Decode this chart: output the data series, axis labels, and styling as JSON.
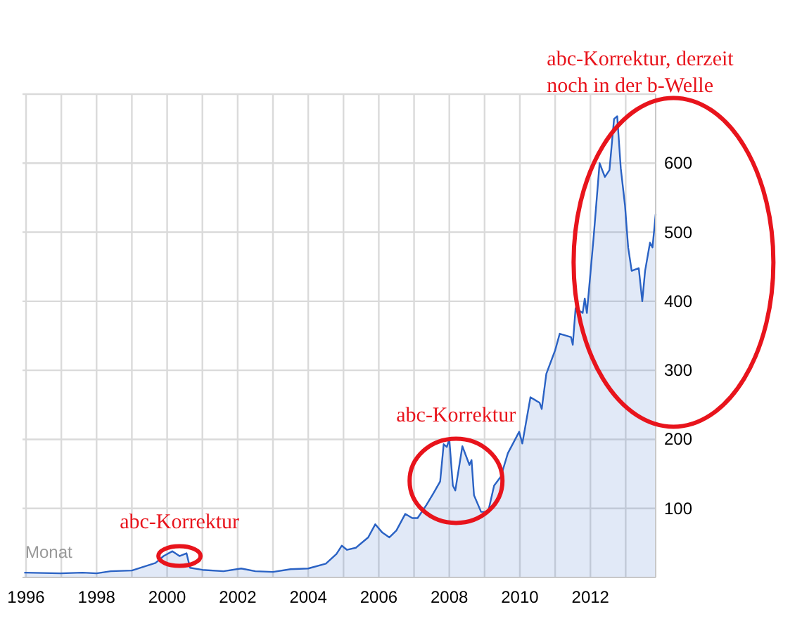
{
  "chart_data": {
    "type": "area",
    "color": "#2a62c4",
    "grid": true,
    "x": [
      1995.95,
      1996.98,
      1997.6,
      1998.0,
      1998.4,
      1999.0,
      1999.67,
      1999.9,
      2000.15,
      2000.35,
      2000.55,
      2000.65,
      2001.0,
      2001.6,
      2002.1,
      2002.5,
      2003.0,
      2003.5,
      2004.0,
      2004.5,
      2004.8,
      2004.95,
      2005.1,
      2005.35,
      2005.7,
      2005.9,
      2006.1,
      2006.3,
      2006.5,
      2006.75,
      2006.95,
      2007.1,
      2007.35,
      2007.55,
      2007.74,
      2007.84,
      2007.93,
      2008.0,
      2008.1,
      2008.17,
      2008.37,
      2008.57,
      2008.63,
      2008.7,
      2008.9,
      2009.1,
      2009.27,
      2009.46,
      2009.66,
      2009.98,
      2010.07,
      2010.3,
      2010.56,
      2010.62,
      2010.75,
      2011.0,
      2011.13,
      2011.45,
      2011.5,
      2011.58,
      2011.78,
      2011.84,
      2011.9,
      2012.09,
      2012.26,
      2012.41,
      2012.54,
      2012.67,
      2012.76,
      2012.86,
      2012.98,
      2013.07,
      2013.17,
      2013.37,
      2013.47,
      2013.55,
      2013.69,
      2013.76,
      2013.85
    ],
    "values": [
      7,
      6,
      7,
      6,
      9,
      10,
      21,
      31,
      38,
      31,
      35,
      14,
      11,
      9,
      13,
      9,
      8,
      12,
      13,
      20,
      34,
      46,
      40,
      43,
      58,
      77,
      65,
      58,
      68,
      92,
      86,
      86,
      105,
      122,
      139,
      193,
      189,
      200,
      133,
      126,
      190,
      163,
      170,
      119,
      95,
      95,
      133,
      146,
      180,
      211,
      194,
      261,
      253,
      244,
      295,
      329,
      353,
      348,
      337,
      390,
      383,
      404,
      383,
      492,
      600,
      580,
      590,
      664,
      668,
      593,
      539,
      478,
      444,
      448,
      400,
      444,
      485,
      478,
      526
    ],
    "xlim": [
      1995.9,
      2013.85
    ],
    "xticks": [
      1996,
      {
        "value": 1997,
        "label": null
      },
      1998,
      {
        "value": 1999,
        "label": null
      },
      2000,
      {
        "value": 2001,
        "label": null
      },
      2002,
      {
        "value": 2003,
        "label": null
      },
      2004,
      {
        "value": 2005,
        "label": null
      },
      2006,
      {
        "value": 2007,
        "label": null
      },
      2008,
      {
        "value": 2009,
        "label": null
      },
      2010,
      {
        "value": 2011,
        "label": null
      },
      2012,
      {
        "value": 2013,
        "label": null
      }
    ],
    "ylim": [
      0,
      700
    ],
    "yticks": [
      100,
      200,
      300,
      400,
      500,
      600,
      {
        "value": 700,
        "label": null
      }
    ],
    "annotations": [
      {
        "text": "abc-Korrektur",
        "x": 2000.35,
        "y": 31
      },
      {
        "text": "abc-Korrektur",
        "x": 2008.35,
        "y": 140
      },
      {
        "text": "abc-Korrektur, derzeit noch in der b-Welle",
        "x": 2012.76,
        "y": 668
      },
      "Monat"
    ]
  }
}
